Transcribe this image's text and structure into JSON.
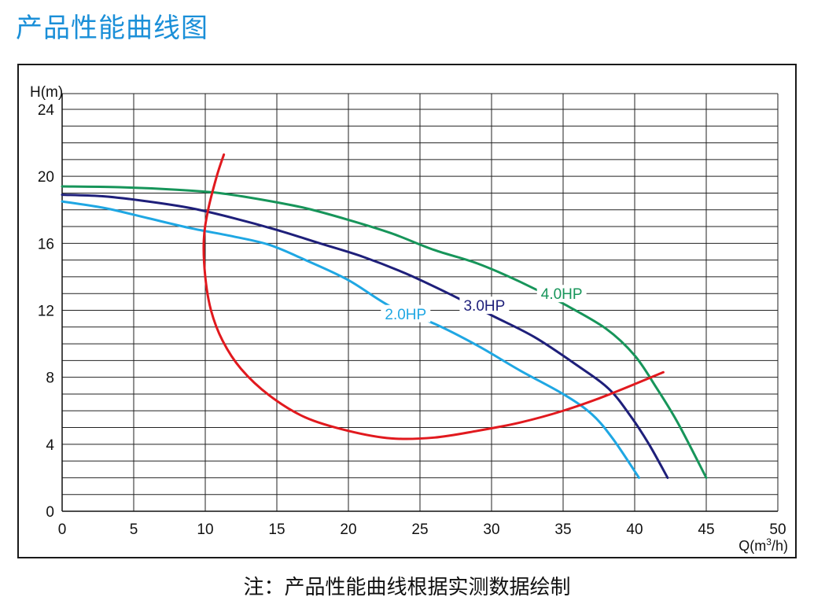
{
  "page_title": "产品性能曲线图",
  "footnote": "注：产品性能曲线根据实测数据绘制",
  "chart_data": {
    "type": "line",
    "title": "",
    "ylabel": "H(m)",
    "xlabel": "Q(m³/h)",
    "xlim": [
      0,
      50
    ],
    "ylim": [
      0,
      24
    ],
    "x_ticks": [
      0,
      5,
      10,
      15,
      20,
      25,
      30,
      35,
      40,
      45,
      50
    ],
    "y_ticks": [
      0,
      4,
      8,
      12,
      16,
      20,
      24
    ],
    "grid": true,
    "series": [
      {
        "name": "2.0HP",
        "color": "#1fa7e3",
        "x": [
          0,
          3,
          6,
          9,
          12,
          14.5,
          17,
          20,
          23,
          26,
          29,
          32,
          35,
          37,
          38.5,
          40.3
        ],
        "y": [
          18.5,
          18.1,
          17.5,
          16.9,
          16.4,
          15.9,
          15.0,
          13.8,
          12.2,
          11.2,
          9.9,
          8.4,
          7.0,
          5.8,
          4.3,
          2.0
        ]
      },
      {
        "name": "3.0HP",
        "color": "#1e1f7a",
        "x": [
          0,
          3,
          6,
          9,
          12,
          15,
          18,
          21,
          24,
          27,
          30,
          33,
          36,
          38.2,
          39.7,
          41,
          42.3
        ],
        "y": [
          18.9,
          18.8,
          18.5,
          18.1,
          17.5,
          16.8,
          16.0,
          15.2,
          14.2,
          13.0,
          11.7,
          10.4,
          8.7,
          7.3,
          5.7,
          4.0,
          2.0
        ]
      },
      {
        "name": "4.0HP",
        "color": "#17955a",
        "x": [
          0,
          4,
          8,
          11,
          14,
          17,
          20,
          23,
          26,
          29,
          32,
          35,
          38,
          40,
          41.5,
          43,
          45
        ],
        "y": [
          19.4,
          19.35,
          19.2,
          19.0,
          18.6,
          18.1,
          17.4,
          16.6,
          15.6,
          14.8,
          13.7,
          12.4,
          10.9,
          9.3,
          7.4,
          5.3,
          2.0
        ]
      },
      {
        "name": "",
        "color": "#e1191e",
        "x": [
          11.3,
          10.8,
          10.2,
          9.9,
          10.0,
          10.4,
          11.2,
          12.5,
          14.5,
          17,
          20,
          23,
          26,
          29,
          32,
          35,
          38,
          42
        ],
        "y": [
          21.3,
          20.0,
          18.0,
          16.2,
          14.0,
          12.0,
          10.2,
          8.5,
          6.9,
          5.6,
          4.8,
          4.35,
          4.4,
          4.8,
          5.3,
          6.0,
          6.9,
          8.3
        ]
      }
    ],
    "annotations": [
      {
        "text": "2.0HP",
        "x": 24,
        "y": 11.8,
        "color": "#1fa7e3"
      },
      {
        "text": "3.0HP",
        "x": 29.5,
        "y": 12.3,
        "color": "#1e1f7a"
      },
      {
        "text": "4.0HP",
        "x": 34.9,
        "y": 13.0,
        "color": "#17955a"
      }
    ]
  }
}
